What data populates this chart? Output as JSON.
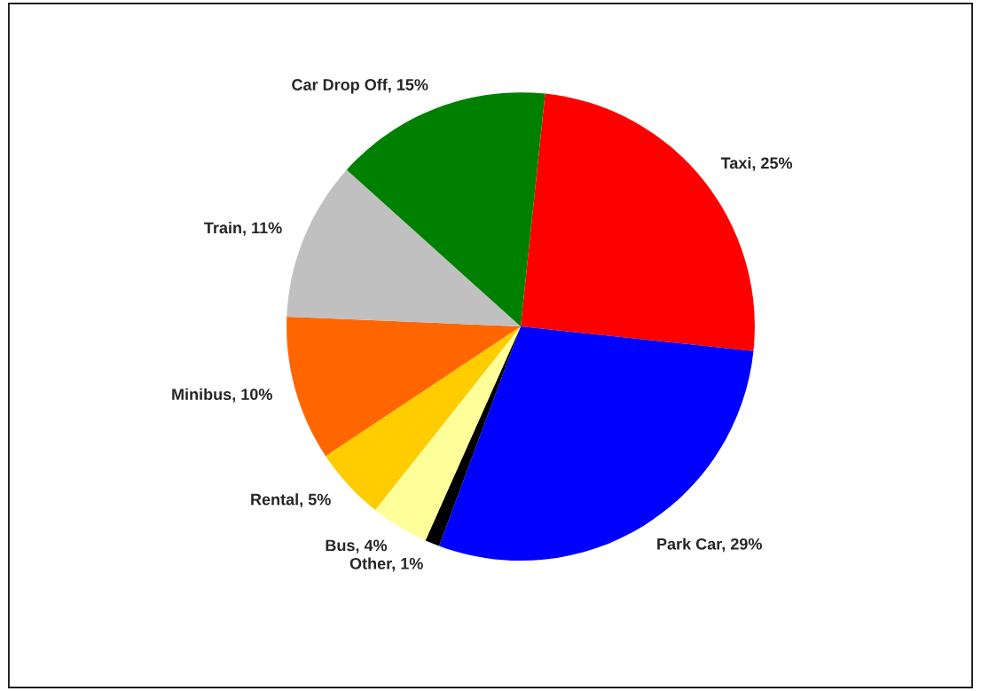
{
  "chart_data": {
    "type": "pie",
    "categories": [
      "Taxi",
      "Park Car",
      "Other",
      "Bus",
      "Rental",
      "Minibus",
      "Train",
      "Car Drop Off"
    ],
    "values": [
      25,
      29,
      1,
      4,
      5,
      10,
      11,
      15
    ],
    "value_labels": [
      "25%",
      "29%",
      "1%",
      "4%",
      "5%",
      "10%",
      "11%",
      "15%"
    ],
    "colors": [
      "#ff0000",
      "#0000ff",
      "#000000",
      "#ffff99",
      "#ffcc00",
      "#ff6600",
      "#c0c0c0",
      "#008000"
    ],
    "legend": false
  }
}
